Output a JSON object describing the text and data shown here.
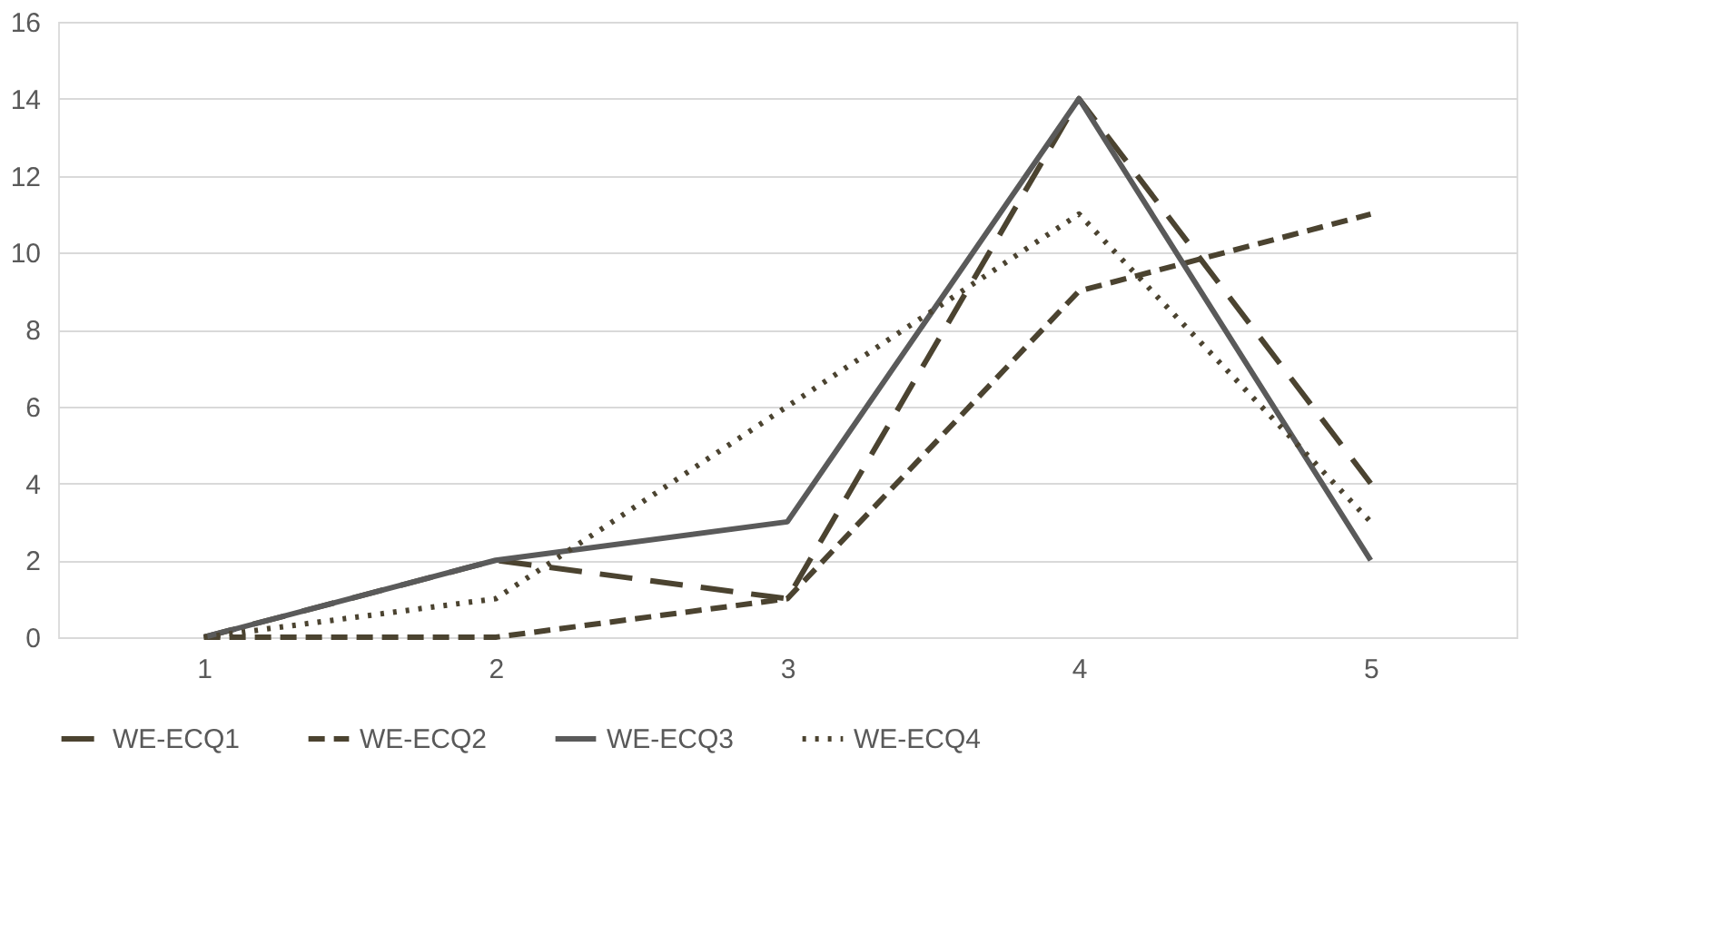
{
  "chart_data": {
    "type": "line",
    "categories": [
      "1",
      "2",
      "3",
      "4",
      "5"
    ],
    "series": [
      {
        "name": "WE-ECQ1",
        "color": "#4b4330",
        "line_style": "longdash",
        "values": [
          0,
          2,
          1,
          14,
          4
        ]
      },
      {
        "name": "WE-ECQ2",
        "color": "#4b4330",
        "line_style": "dashed",
        "values": [
          0,
          0,
          1,
          9,
          11
        ]
      },
      {
        "name": "WE-ECQ3",
        "color": "#5a5a5a",
        "line_style": "solid",
        "values": [
          0,
          2,
          3,
          14,
          2
        ]
      },
      {
        "name": "WE-ECQ4",
        "color": "#4b4330",
        "line_style": "dotted",
        "values": [
          0,
          1,
          6,
          11,
          3
        ]
      }
    ],
    "ylim": [
      0,
      16
    ],
    "yticks": [
      0,
      2,
      4,
      6,
      8,
      10,
      12,
      14,
      16
    ],
    "grid": "y",
    "legend": "bottom",
    "marker": "none"
  }
}
